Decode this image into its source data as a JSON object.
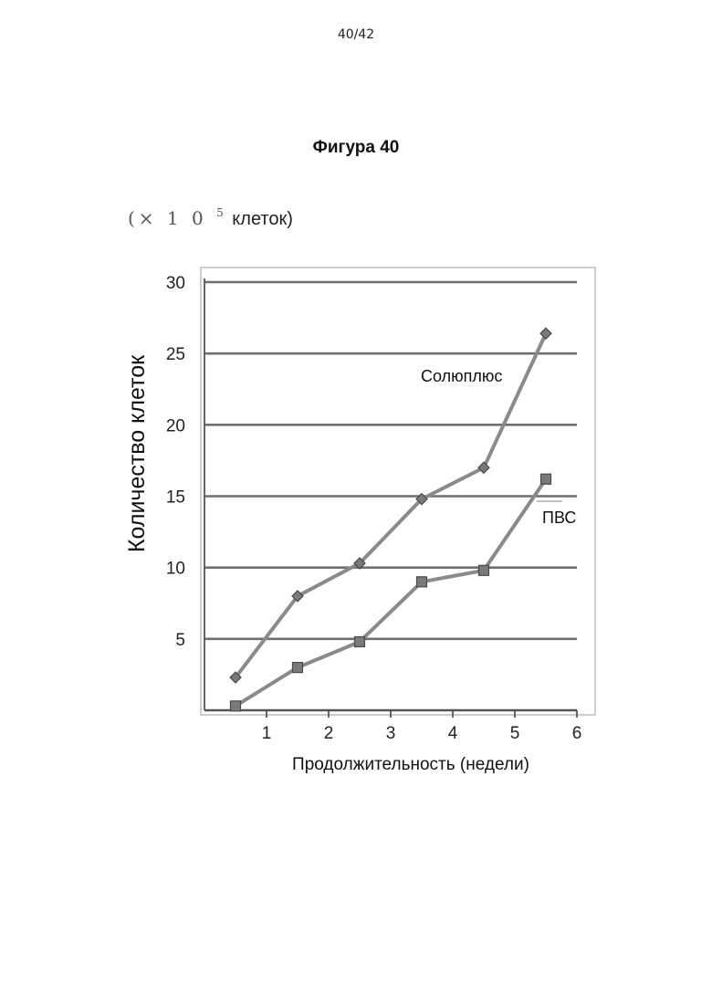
{
  "page": {
    "number": "40/42",
    "figure_title": "Фигура 40",
    "unit_note": {
      "multiplier": "(× 1 0",
      "exponent": "5",
      "word": "клеток)"
    }
  },
  "chart_data": {
    "type": "line",
    "title": "",
    "xlabel": "Продолжительность (недели)",
    "ylabel": "Количество клеток",
    "xlim": [
      0,
      6
    ],
    "ylim": [
      0,
      30
    ],
    "x_ticks": [
      1,
      2,
      3,
      4,
      5,
      6
    ],
    "y_ticks": [
      5,
      10,
      15,
      20,
      25,
      30
    ],
    "grid": "horizontal",
    "legend": "inline labels next to lines",
    "series": [
      {
        "name": "Солюплюс",
        "marker": "diamond",
        "color": "#8a8a8a",
        "x": [
          0.5,
          1.5,
          2.5,
          3.5,
          4.5,
          5.5
        ],
        "y": [
          2.3,
          8.0,
          10.3,
          14.8,
          17.0,
          26.4
        ]
      },
      {
        "name": "ПВС",
        "marker": "square",
        "color": "#8a8a8a",
        "x": [
          0.5,
          1.5,
          2.5,
          3.5,
          4.5,
          5.5
        ],
        "y": [
          0.3,
          3.0,
          4.8,
          9.0,
          9.8,
          16.2
        ]
      }
    ]
  }
}
